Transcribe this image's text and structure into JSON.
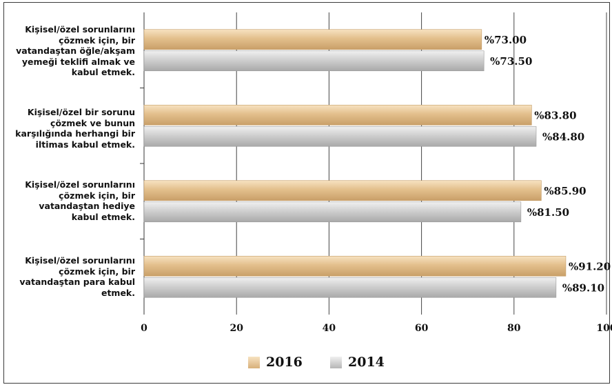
{
  "chart_data": {
    "type": "bar",
    "orientation": "horizontal",
    "title": "",
    "xlabel": "",
    "ylabel": "",
    "xlim": [
      0,
      100
    ],
    "xticks": [
      0,
      20,
      40,
      60,
      80,
      100
    ],
    "grid": true,
    "legend_position": "bottom",
    "categories": [
      "Kişisel/özel sorunlarını çözmek için, bir vatandaştan öğle/akşam yemeği teklifi almak ve kabul etmek.",
      "Kişisel/özel bir sorunu çözmek ve bunun karşılığında herhangi bir iltimas kabul etmek.",
      "Kişisel/özel sorunlarını çözmek için, bir vatandaştan hediye kabul etmek.",
      "Kişisel/özel sorunlarını çözmek için, bir vatandaştan para kabul etmek."
    ],
    "series": [
      {
        "name": "2016",
        "color": "#e6c89a",
        "values": [
          73.0,
          83.8,
          85.9,
          91.2
        ],
        "labels": [
          "%73.00",
          "%83.80",
          "%85.90",
          "%91.20"
        ]
      },
      {
        "name": "2014",
        "color": "#c8c8c8",
        "values": [
          73.5,
          84.8,
          81.5,
          89.1
        ],
        "labels": [
          "%73.50",
          "%84.80",
          "%81.50",
          "%89.10"
        ]
      }
    ]
  }
}
